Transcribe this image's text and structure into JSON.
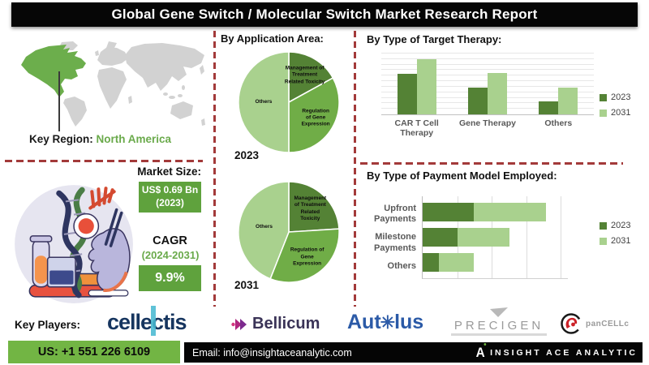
{
  "title": "Global Gene Switch / Molecular Switch Market Research Report",
  "colors": {
    "accent_green": "#6aaa4b",
    "box_green": "#5fa23d",
    "dark_green": "#548235",
    "mid_green": "#70ad47",
    "light_green": "#a9d18e",
    "dashed_red": "#a33a3a",
    "footer_green": "#72b544",
    "map_gray": "#d2d2d2",
    "map_highlight": "#6cae4c"
  },
  "map": {
    "key_region_label": "Key Region:",
    "key_region_value": "North America",
    "highlighted_region": "North America"
  },
  "market": {
    "size_label": "Market Size:",
    "size_value": "US$ 0.69 Bn",
    "size_year": "(2023)",
    "cagr_label": "CAGR",
    "cagr_period": "(2024-2031)",
    "cagr_value": "9.9%"
  },
  "chart_data": [
    {
      "id": "application-2023",
      "type": "pie",
      "title": "By Application Area:",
      "year_label": "2023",
      "legend_position": "none",
      "slices": [
        {
          "label": "Management of Treatment Related Toxicity",
          "value": 17,
          "color": "#548235"
        },
        {
          "label": "Regulation of Gene Expression",
          "value": 33,
          "color": "#70ad47"
        },
        {
          "label": "Others",
          "value": 50,
          "color": "#a9d18e"
        }
      ]
    },
    {
      "id": "application-2031",
      "type": "pie",
      "title": "By Application Area:",
      "year_label": "2031",
      "legend_position": "none",
      "slices": [
        {
          "label": "Management of Treatment Related Toxicity",
          "value": 24,
          "color": "#548235"
        },
        {
          "label": "Regulation of Gene Expression",
          "value": 32,
          "color": "#70ad47"
        },
        {
          "label": "Others",
          "value": 44,
          "color": "#a9d18e"
        }
      ]
    },
    {
      "id": "target-therapy",
      "type": "bar",
      "title": "By Type of Target Therapy:",
      "categories": [
        "CAR T Cell Therapy",
        "Gene Therapy",
        "Others"
      ],
      "series": [
        {
          "name": "2023",
          "color": "#548235",
          "values": [
            74,
            49,
            24
          ]
        },
        {
          "name": "2031",
          "color": "#a9d18e",
          "values": [
            100,
            75,
            49
          ]
        }
      ],
      "ylim": [
        0,
        110
      ],
      "grid": true,
      "legend_position": "right"
    },
    {
      "id": "payment-model",
      "type": "stacked_hbar",
      "title": "By Type of Payment Model Employed:",
      "categories": [
        "Upfront Payments",
        "Milestone Payments",
        "Others"
      ],
      "series": [
        {
          "name": "2023",
          "color": "#548235",
          "values": [
            37,
            25,
            12
          ]
        },
        {
          "name": "2031",
          "color": "#a9d18e",
          "values": [
            52,
            38,
            25
          ]
        }
      ],
      "xlim": [
        0,
        105
      ],
      "grid": true,
      "legend_position": "right"
    }
  ],
  "key_players": {
    "label": "Key Players:",
    "companies": [
      {
        "name": "cellectis"
      },
      {
        "name": "Bellicum"
      },
      {
        "name": "Autolus",
        "pre": "Aut",
        "post": "lus"
      },
      {
        "name": "PRECIGEN"
      },
      {
        "name": "panCELLc"
      }
    ]
  },
  "icons": {
    "autolus_o": "✳"
  },
  "footer": {
    "phone": "US: +1 551 226 6109",
    "email": "Email: info@insightaceanalytic.com",
    "brand": "INSIGHT ACE ANALYTIC",
    "brand_initial": "A"
  }
}
